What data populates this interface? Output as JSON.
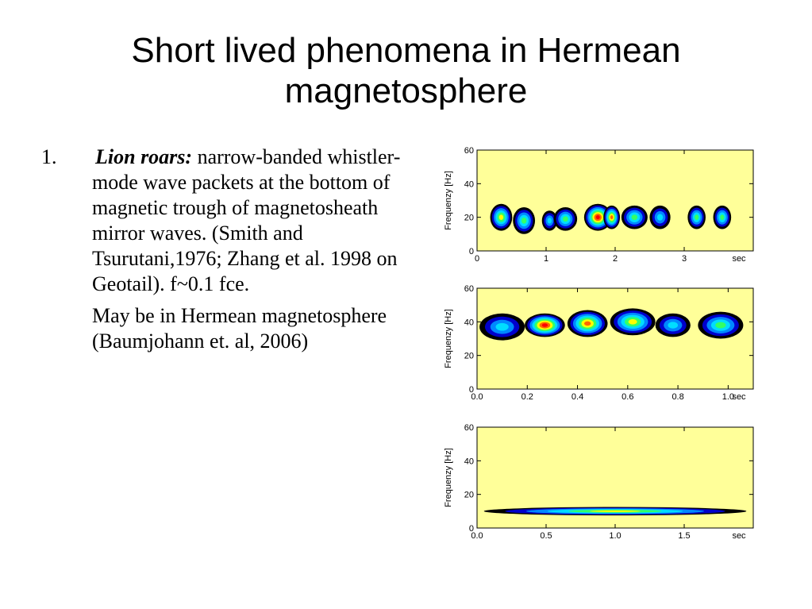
{
  "slide": {
    "title_line1": "Short lived phenomena in Hermean",
    "title_line2": "magnetosphere",
    "item": {
      "number": "1.",
      "term": "Lion roars:",
      "text": " narrow-banded whistler-mode wave packets at the bottom of magnetic trough of magnetosheath mirror waves. (Smith and Tsurutani,1976; Zhang et al. 1998 on Geotail). f~0.1 fce."
    },
    "paragraph": "May be in Hermean magnetosphere (Baumjohann et. al, 2006)"
  },
  "colors": {
    "panel_background": "#ffff99",
    "spectrogram_scale": [
      "#000000",
      "#0000cc",
      "#0088ff",
      "#00ddff",
      "#33ff66",
      "#ffff00",
      "#ff6600",
      "#ff0000"
    ]
  },
  "chart_data": [
    {
      "type": "heatmap",
      "ylabel": "Frequenzy  [Hz]",
      "ylim": [
        0,
        60
      ],
      "yticks": [
        "0",
        "20",
        "40",
        "60"
      ],
      "xlim": [
        0,
        4
      ],
      "xticks": [
        {
          "value": 0,
          "label": "0"
        },
        {
          "value": 1,
          "label": "1"
        },
        {
          "value": 2,
          "label": "2"
        },
        {
          "value": 3,
          "label": "3"
        }
      ],
      "xunit": "sec",
      "packets": [
        {
          "t": 0.35,
          "f": 20,
          "dt": 0.16,
          "df": 8,
          "peak": 5
        },
        {
          "t": 0.68,
          "f": 18,
          "dt": 0.16,
          "df": 8,
          "peak": 4
        },
        {
          "t": 1.05,
          "f": 18,
          "dt": 0.11,
          "df": 6,
          "peak": 3
        },
        {
          "t": 1.28,
          "f": 19,
          "dt": 0.17,
          "df": 7,
          "peak": 4
        },
        {
          "t": 1.75,
          "f": 20,
          "dt": 0.2,
          "df": 8,
          "peak": 7
        },
        {
          "t": 1.95,
          "f": 20,
          "dt": 0.12,
          "df": 7,
          "peak": 6
        },
        {
          "t": 2.28,
          "f": 20,
          "dt": 0.19,
          "df": 7,
          "peak": 4
        },
        {
          "t": 2.65,
          "f": 20,
          "dt": 0.15,
          "df": 7,
          "peak": 3
        },
        {
          "t": 3.18,
          "f": 20,
          "dt": 0.13,
          "df": 7,
          "peak": 4
        },
        {
          "t": 3.55,
          "f": 20,
          "dt": 0.13,
          "df": 7,
          "peak": 4
        }
      ]
    },
    {
      "type": "heatmap",
      "ylabel": "Frequenzy  [Hz]",
      "ylim": [
        0,
        60
      ],
      "yticks": [
        "0",
        "20",
        "40",
        "60"
      ],
      "xlim": [
        0,
        1.1
      ],
      "xticks": [
        {
          "value": 0,
          "label": "0.0"
        },
        {
          "value": 0.2,
          "label": "0.2"
        },
        {
          "value": 0.4,
          "label": "0.4"
        },
        {
          "value": 0.6,
          "label": "0.6"
        },
        {
          "value": 0.8,
          "label": "0.8"
        },
        {
          "value": 1.0,
          "label": "1.0"
        }
      ],
      "xunit": "sec",
      "packets": [
        {
          "t": 0.1,
          "f": 37,
          "dt": 0.09,
          "df": 8,
          "peak": 3
        },
        {
          "t": 0.27,
          "f": 38,
          "dt": 0.08,
          "df": 7,
          "peak": 7
        },
        {
          "t": 0.44,
          "f": 39,
          "dt": 0.08,
          "df": 8,
          "peak": 6
        },
        {
          "t": 0.62,
          "f": 40,
          "dt": 0.09,
          "df": 8,
          "peak": 5
        },
        {
          "t": 0.78,
          "f": 38,
          "dt": 0.07,
          "df": 7,
          "peak": 3
        },
        {
          "t": 0.97,
          "f": 38,
          "dt": 0.09,
          "df": 8,
          "peak": 4
        }
      ]
    },
    {
      "type": "heatmap",
      "ylabel": "Frequenzy  [Hz]",
      "ylim": [
        0,
        60
      ],
      "yticks": [
        "0",
        "20",
        "40",
        "60"
      ],
      "xlim": [
        0,
        2.0
      ],
      "xticks": [
        {
          "value": 0,
          "label": "0.0"
        },
        {
          "value": 0.5,
          "label": "0.5"
        },
        {
          "value": 1.0,
          "label": "1.0"
        },
        {
          "value": 1.5,
          "label": "1.5"
        }
      ],
      "xunit": "sec",
      "packets": [
        {
          "t": 1.0,
          "f": 10,
          "dt": 0.95,
          "df": 2.5,
          "peak": 5
        }
      ]
    }
  ]
}
